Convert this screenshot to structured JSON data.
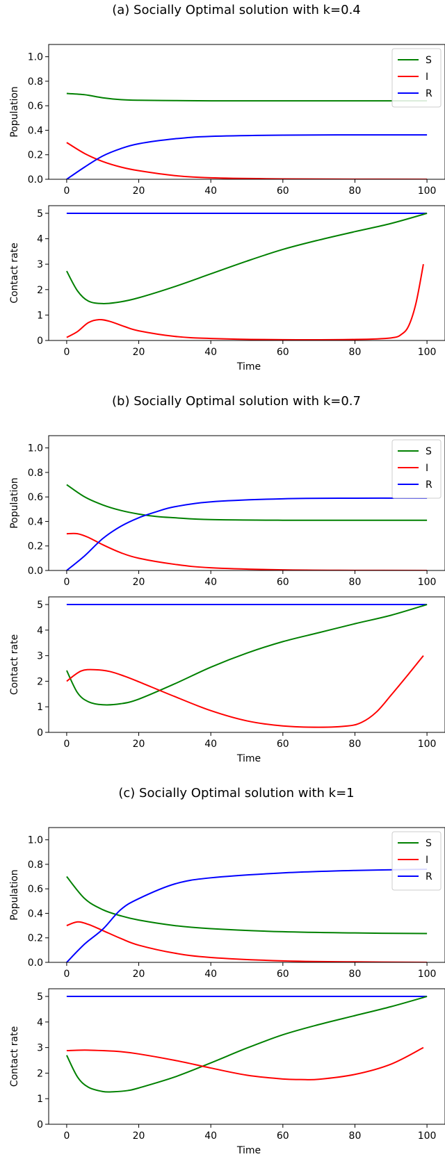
{
  "panels": [
    {
      "title": "(a) Socially Optimal solution with k=0.4",
      "population": {
        "ylabel": "Population",
        "ylim": [
          0,
          1.1
        ],
        "yticks": [
          "0.0",
          "0.2",
          "0.4",
          "0.6",
          "0.8",
          "1.0"
        ],
        "series": [
          {
            "name": "S",
            "color": "#008000",
            "x": [
              0,
              5,
              10,
              15,
              20,
              30,
              40,
              60,
              80,
              100
            ],
            "y": [
              0.7,
              0.69,
              0.665,
              0.65,
              0.645,
              0.642,
              0.64,
              0.64,
              0.64,
              0.64
            ]
          },
          {
            "name": "I",
            "color": "#ff0000",
            "x": [
              0,
              5,
              10,
              15,
              20,
              30,
              40,
              60,
              80,
              100
            ],
            "y": [
              0.3,
              0.21,
              0.145,
              0.1,
              0.07,
              0.03,
              0.012,
              0.003,
              0.001,
              0.0
            ]
          },
          {
            "name": "R",
            "color": "#0000ff",
            "x": [
              0,
              5,
              10,
              15,
              20,
              30,
              40,
              60,
              80,
              100
            ],
            "y": [
              0.0,
              0.1,
              0.19,
              0.25,
              0.29,
              0.33,
              0.35,
              0.36,
              0.362,
              0.362
            ]
          }
        ]
      },
      "contact": {
        "ylabel": "Contact rate",
        "xlabel": "Time",
        "ylim": [
          0,
          5.3
        ],
        "yticks": [
          "0",
          "1",
          "2",
          "3",
          "4",
          "5"
        ],
        "series": [
          {
            "name": "R",
            "color": "#0000ff",
            "x": [
              0,
              100
            ],
            "y": [
              5,
              5
            ]
          },
          {
            "name": "S",
            "color": "#008000",
            "x": [
              0,
              3,
              6,
              10,
              15,
              20,
              30,
              40,
              50,
              60,
              70,
              80,
              90,
              100
            ],
            "y": [
              2.73,
              1.95,
              1.55,
              1.45,
              1.52,
              1.68,
              2.12,
              2.62,
              3.12,
              3.58,
              3.95,
              4.28,
              4.6,
              5.0
            ]
          },
          {
            "name": "I",
            "color": "#ff0000",
            "x": [
              0,
              3,
              6,
              9,
              12,
              16,
              20,
              30,
              40,
              60,
              80,
              90,
              93,
              95,
              97,
              99
            ],
            "y": [
              0.12,
              0.35,
              0.7,
              0.82,
              0.75,
              0.55,
              0.38,
              0.16,
              0.08,
              0.03,
              0.04,
              0.1,
              0.25,
              0.6,
              1.5,
              3.0
            ]
          }
        ]
      }
    },
    {
      "title": "(b) Socially Optimal solution with k=0.7",
      "population": {
        "ylabel": "Population",
        "ylim": [
          0,
          1.1
        ],
        "yticks": [
          "0.0",
          "0.2",
          "0.4",
          "0.6",
          "0.8",
          "1.0"
        ],
        "series": [
          {
            "name": "S",
            "color": "#008000",
            "x": [
              0,
              5,
              10,
              15,
              20,
              25,
              30,
              40,
              60,
              80,
              100
            ],
            "y": [
              0.7,
              0.6,
              0.535,
              0.49,
              0.46,
              0.44,
              0.43,
              0.415,
              0.41,
              0.41,
              0.41
            ]
          },
          {
            "name": "I",
            "color": "#ff0000",
            "x": [
              0,
              3,
              6,
              10,
              15,
              20,
              30,
              40,
              60,
              80,
              100
            ],
            "y": [
              0.3,
              0.3,
              0.27,
              0.21,
              0.145,
              0.1,
              0.05,
              0.022,
              0.005,
              0.001,
              0.0
            ]
          },
          {
            "name": "R",
            "color": "#0000ff",
            "x": [
              0,
              5,
              10,
              15,
              20,
              25,
              30,
              40,
              60,
              80,
              100
            ],
            "y": [
              0.0,
              0.12,
              0.26,
              0.36,
              0.43,
              0.48,
              0.52,
              0.56,
              0.585,
              0.59,
              0.59
            ]
          }
        ]
      },
      "contact": {
        "ylabel": "Contact rate",
        "xlabel": "Time",
        "ylim": [
          0,
          5.3
        ],
        "yticks": [
          "0",
          "1",
          "2",
          "3",
          "4",
          "5"
        ],
        "series": [
          {
            "name": "R",
            "color": "#0000ff",
            "x": [
              0,
              100
            ],
            "y": [
              5,
              5
            ]
          },
          {
            "name": "S",
            "color": "#008000",
            "x": [
              0,
              3,
              6,
              10,
              15,
              20,
              30,
              40,
              50,
              60,
              70,
              80,
              90,
              100
            ],
            "y": [
              2.42,
              1.55,
              1.2,
              1.08,
              1.12,
              1.3,
              1.9,
              2.55,
              3.1,
              3.55,
              3.9,
              4.25,
              4.58,
              5.0
            ]
          },
          {
            "name": "I",
            "color": "#ff0000",
            "x": [
              0,
              4,
              8,
              12,
              16,
              20,
              30,
              40,
              50,
              60,
              70,
              78,
              82,
              86,
              90,
              95,
              99
            ],
            "y": [
              2.0,
              2.4,
              2.45,
              2.38,
              2.2,
              1.98,
              1.4,
              0.85,
              0.45,
              0.25,
              0.2,
              0.25,
              0.4,
              0.8,
              1.45,
              2.3,
              3.0
            ]
          }
        ]
      }
    },
    {
      "title": "(c) Socially Optimal solution with k=1",
      "population": {
        "ylabel": "Population",
        "ylim": [
          0,
          1.1
        ],
        "yticks": [
          "0.0",
          "0.2",
          "0.4",
          "0.6",
          "0.8",
          "1.0"
        ],
        "series": [
          {
            "name": "S",
            "color": "#008000",
            "x": [
              0,
              5,
              10,
              15,
              20,
              30,
              40,
              60,
              80,
              100
            ],
            "y": [
              0.7,
              0.52,
              0.43,
              0.38,
              0.345,
              0.3,
              0.275,
              0.25,
              0.24,
              0.235
            ]
          },
          {
            "name": "I",
            "color": "#ff0000",
            "x": [
              0,
              3,
              6,
              10,
              15,
              20,
              30,
              40,
              60,
              80,
              100
            ],
            "y": [
              0.3,
              0.33,
              0.31,
              0.26,
              0.195,
              0.14,
              0.075,
              0.04,
              0.012,
              0.004,
              0.0
            ]
          },
          {
            "name": "R",
            "color": "#0000ff",
            "x": [
              0,
              5,
              10,
              15,
              20,
              30,
              40,
              60,
              80,
              100
            ],
            "y": [
              0.0,
              0.15,
              0.27,
              0.43,
              0.52,
              0.64,
              0.69,
              0.73,
              0.75,
              0.76
            ]
          }
        ]
      },
      "contact": {
        "ylabel": "Contact rate",
        "xlabel": "Time",
        "ylim": [
          0,
          5.3
        ],
        "yticks": [
          "0",
          "1",
          "2",
          "3",
          "4",
          "5"
        ],
        "series": [
          {
            "name": "R",
            "color": "#0000ff",
            "x": [
              0,
              100
            ],
            "y": [
              5,
              5
            ]
          },
          {
            "name": "S",
            "color": "#008000",
            "x": [
              0,
              3,
              6,
              10,
              13,
              17,
              20,
              30,
              40,
              50,
              60,
              70,
              80,
              90,
              100
            ],
            "y": [
              2.7,
              1.85,
              1.45,
              1.28,
              1.27,
              1.32,
              1.42,
              1.85,
              2.4,
              2.98,
              3.5,
              3.9,
              4.25,
              4.6,
              5.0
            ]
          },
          {
            "name": "I",
            "color": "#ff0000",
            "x": [
              0,
              5,
              10,
              15,
              20,
              30,
              40,
              50,
              60,
              65,
              70,
              80,
              90,
              99
            ],
            "y": [
              2.88,
              2.9,
              2.88,
              2.84,
              2.75,
              2.5,
              2.2,
              1.92,
              1.77,
              1.75,
              1.76,
              1.95,
              2.35,
              3.0
            ]
          }
        ]
      }
    }
  ],
  "chart_data": [
    {
      "type": "line",
      "title": "(a) Socially Optimal solution with k=0.4",
      "subplot": "population",
      "ylabel": "Population",
      "xlim": [
        0,
        100
      ],
      "ylim": [
        0,
        1.1
      ],
      "legend": "top-right",
      "series": [
        {
          "name": "S"
        },
        {
          "name": "I"
        },
        {
          "name": "R"
        }
      ]
    },
    {
      "type": "line",
      "subplot": "contact",
      "ylabel": "Contact rate",
      "xlabel": "Time",
      "xlim": [
        0,
        100
      ],
      "ylim": [
        0,
        5.3
      ]
    },
    {
      "type": "line",
      "title": "(b) Socially Optimal solution with k=0.7",
      "subplot": "population",
      "ylabel": "Population",
      "xlim": [
        0,
        100
      ],
      "ylim": [
        0,
        1.1
      ],
      "legend": "top-right",
      "series": [
        {
          "name": "S"
        },
        {
          "name": "I"
        },
        {
          "name": "R"
        }
      ]
    },
    {
      "type": "line",
      "subplot": "contact",
      "ylabel": "Contact rate",
      "xlabel": "Time",
      "xlim": [
        0,
        100
      ],
      "ylim": [
        0,
        5.3
      ]
    },
    {
      "type": "line",
      "title": "(c) Socially Optimal solution with k=1",
      "subplot": "population",
      "ylabel": "Population",
      "xlim": [
        0,
        100
      ],
      "ylim": [
        0,
        1.1
      ],
      "legend": "top-right",
      "series": [
        {
          "name": "S"
        },
        {
          "name": "I"
        },
        {
          "name": "R"
        }
      ]
    },
    {
      "type": "line",
      "subplot": "contact",
      "ylabel": "Contact rate",
      "xlabel": "Time",
      "xlim": [
        0,
        100
      ],
      "ylim": [
        0,
        5.3
      ]
    }
  ],
  "xticks": [
    "0",
    "20",
    "40",
    "60",
    "80",
    "100"
  ]
}
